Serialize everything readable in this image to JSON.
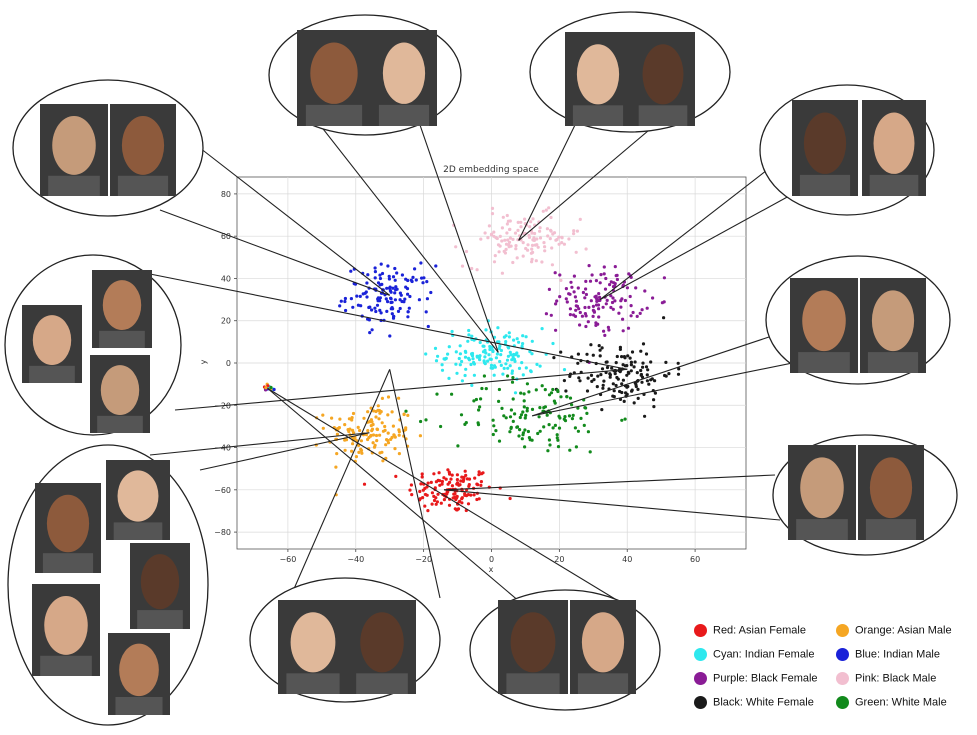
{
  "chart_data": {
    "type": "scatter",
    "title": "2D embedding space",
    "xlabel": "x",
    "ylabel": "y",
    "xlim": [
      -75,
      75
    ],
    "ylim": [
      -88,
      88
    ],
    "xticks": [
      -60,
      -40,
      -20,
      0,
      20,
      40,
      60
    ],
    "yticks": [
      -80,
      -60,
      -40,
      -20,
      0,
      20,
      40,
      60,
      80
    ],
    "grid": true,
    "series": [
      {
        "name": "Red: Asian Female",
        "color": "#e8191b",
        "center": [
          -12,
          -60
        ],
        "spread": [
          9,
          8
        ],
        "n": 130
      },
      {
        "name": "Orange: Asian Male",
        "color": "#f5a623",
        "center": [
          -36,
          -33
        ],
        "spread": [
          9,
          10
        ],
        "n": 130
      },
      {
        "name": "Cyan: Indian Female",
        "color": "#2ee8ee",
        "center": [
          0,
          4
        ],
        "spread": [
          11,
          9
        ],
        "n": 150
      },
      {
        "name": "Blue: Indian Male",
        "color": "#1a22d8",
        "center": [
          -30,
          32
        ],
        "spread": [
          9,
          10
        ],
        "n": 130
      },
      {
        "name": "Purple: Black Female",
        "color": "#8a1c96",
        "center": [
          32,
          30
        ],
        "spread": [
          9,
          11
        ],
        "n": 130
      },
      {
        "name": "Pink: Black Male",
        "color": "#f2bfd0",
        "center": [
          9,
          58
        ],
        "spread": [
          12,
          9
        ],
        "n": 130
      },
      {
        "name": "Black: White Female",
        "color": "#1a1a1a",
        "center": [
          38,
          -5
        ],
        "spread": [
          11,
          11
        ],
        "n": 140
      },
      {
        "name": "Green: White Male",
        "color": "#128a1c",
        "center": [
          12,
          -25
        ],
        "spread": [
          17,
          13
        ],
        "n": 130
      }
    ],
    "legend": [
      {
        "label": "Red: Asian Female",
        "color": "#e8191b"
      },
      {
        "label": "Orange: Asian Male",
        "color": "#f5a623"
      },
      {
        "label": "Cyan: Indian Female",
        "color": "#2ee8ee"
      },
      {
        "label": "Blue: Indian Male",
        "color": "#1a22d8"
      },
      {
        "label": "Purple: Black Female",
        "color": "#8a1c96"
      },
      {
        "label": "Pink: Black Male",
        "color": "#f2bfd0"
      },
      {
        "label": "Black: White Female",
        "color": "#1a1a1a"
      },
      {
        "label": "Green: White Male",
        "color": "#128a1c"
      }
    ],
    "legend_position": "bottom-right, outside plot",
    "annotations": [
      {
        "name": "indian-male-faces",
        "faces": 2,
        "point": [
          -30,
          32
        ]
      },
      {
        "name": "indian-female-faces",
        "faces": 2,
        "point": [
          2,
          5
        ]
      },
      {
        "name": "black-male-faces",
        "faces": 2,
        "point": [
          8,
          58
        ]
      },
      {
        "name": "black-female-faces",
        "faces": 2,
        "point": [
          32,
          30
        ]
      },
      {
        "name": "white-female-faces",
        "faces": 2,
        "point": [
          40,
          -3
        ]
      },
      {
        "name": "white-male-faces",
        "faces": 2,
        "point": [
          12,
          -25
        ]
      },
      {
        "name": "asian-female-faces",
        "faces": 2,
        "point": [
          -14,
          -60
        ]
      },
      {
        "name": "asian-male-faces",
        "faces": 2,
        "point": [
          -36,
          -33
        ]
      },
      {
        "name": "mixed-cluster-faces",
        "faces": 3,
        "point": [
          -30,
          -3
        ]
      },
      {
        "name": "outlier-faces",
        "faces": 4,
        "point": [
          -66,
          -12
        ]
      }
    ]
  }
}
